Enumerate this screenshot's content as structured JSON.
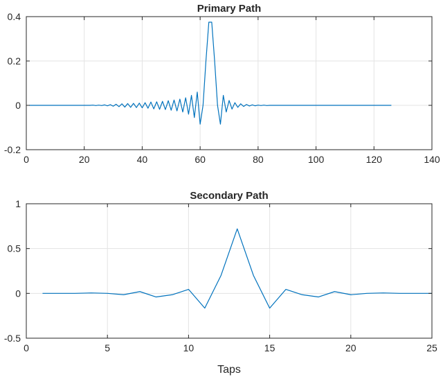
{
  "chart_data": [
    {
      "type": "line",
      "title": "Primary Path",
      "xlabel": "",
      "ylabel": "",
      "xlim": [
        0,
        140
      ],
      "ylim": [
        -0.2,
        0.4
      ],
      "xticks": [
        0,
        20,
        40,
        60,
        80,
        100,
        120,
        140
      ],
      "xtick_labels": [
        "0",
        "20",
        "40",
        "60",
        "80",
        "100",
        "120",
        "140"
      ],
      "yticks": [
        -0.2,
        0,
        0.2,
        0.4
      ],
      "ytick_labels": [
        "-0.2",
        "0",
        "0.2",
        "0.4"
      ],
      "grid": true,
      "line_color": "#0072BD",
      "x": [
        1,
        2,
        3,
        4,
        5,
        6,
        7,
        8,
        9,
        10,
        11,
        12,
        13,
        14,
        15,
        16,
        17,
        18,
        19,
        20,
        21,
        22,
        23,
        24,
        25,
        26,
        27,
        28,
        29,
        30,
        31,
        32,
        33,
        34,
        35,
        36,
        37,
        38,
        39,
        40,
        41,
        42,
        43,
        44,
        45,
        46,
        47,
        48,
        49,
        50,
        51,
        52,
        53,
        54,
        55,
        56,
        57,
        58,
        59,
        60,
        61,
        62,
        63,
        64,
        65,
        66,
        67,
        68,
        69,
        70,
        71,
        72,
        73,
        74,
        75,
        76,
        77,
        78,
        79,
        80,
        81,
        82,
        83,
        84,
        85,
        86,
        87,
        88,
        89,
        90,
        91,
        92,
        93,
        94,
        95,
        96,
        97,
        98,
        99,
        100,
        101,
        102,
        103,
        104,
        105,
        106,
        107,
        108,
        109,
        110,
        111,
        112,
        113,
        114,
        115,
        116,
        117,
        118,
        119,
        120,
        121,
        122,
        123,
        124,
        125,
        126
      ],
      "y": [
        0.0,
        0.0,
        0.0,
        0.0,
        0.0,
        0.0,
        0.0,
        0.0,
        0.0,
        0.0,
        0.0,
        0.0,
        0.0,
        0.0,
        0.0,
        0.0,
        0.0,
        0.0,
        0.0,
        0.0,
        0.0,
        0.0,
        0.001,
        -0.001,
        0.001,
        -0.001,
        0.002,
        -0.002,
        0.003,
        -0.004,
        0.005,
        -0.006,
        0.007,
        -0.008,
        0.008,
        -0.009,
        0.009,
        -0.01,
        0.01,
        -0.011,
        0.012,
        -0.013,
        0.015,
        -0.016,
        0.016,
        -0.018,
        0.018,
        -0.019,
        0.021,
        -0.022,
        0.024,
        -0.025,
        0.028,
        -0.03,
        0.034,
        -0.04,
        0.045,
        -0.055,
        0.06,
        -0.085,
        0.0,
        0.2,
        0.375,
        0.375,
        0.2,
        0.0,
        -0.085,
        0.045,
        -0.03,
        0.022,
        -0.017,
        0.012,
        -0.009,
        0.007,
        -0.005,
        0.004,
        -0.003,
        0.002,
        -0.002,
        0.001,
        -0.001,
        0.001,
        -0.001,
        0.0,
        0.0,
        0.0,
        0.0,
        0.0,
        0.0,
        0.0,
        0.0,
        0.0,
        0.0,
        0.0,
        0.0,
        0.0,
        0.0,
        0.0,
        0.0,
        0.0,
        0.0,
        0.0,
        0.0,
        0.0,
        0.0,
        0.0,
        0.0,
        0.0,
        0.0,
        0.0,
        0.0,
        0.0,
        0.0,
        0.0,
        0.0,
        0.0,
        0.0,
        0.0,
        0.0,
        0.0,
        0.0,
        0.0,
        0.0,
        0.0,
        0.0,
        0.0
      ]
    },
    {
      "type": "line",
      "title": "Secondary Path",
      "xlabel": "Taps",
      "ylabel": "",
      "xlim": [
        0,
        25
      ],
      "ylim": [
        -0.5,
        1
      ],
      "xticks": [
        0,
        5,
        10,
        15,
        20,
        25
      ],
      "xtick_labels": [
        "0",
        "5",
        "10",
        "15",
        "20",
        "25"
      ],
      "yticks": [
        -0.5,
        0,
        0.5,
        1
      ],
      "ytick_labels": [
        "-0.5",
        "0",
        "0.5",
        "1"
      ],
      "grid": true,
      "line_color": "#0072BD",
      "x": [
        1,
        2,
        3,
        4,
        5,
        6,
        7,
        8,
        9,
        10,
        11,
        12,
        13,
        14,
        15,
        16,
        17,
        18,
        19,
        20,
        21,
        22,
        23,
        24,
        25
      ],
      "y": [
        0.0,
        0.0,
        0.0,
        0.005,
        0.0,
        -0.015,
        0.02,
        -0.04,
        -0.015,
        0.045,
        -0.165,
        0.2,
        0.72,
        0.2,
        -0.165,
        0.045,
        -0.015,
        -0.04,
        0.02,
        -0.015,
        0.0,
        0.005,
        0.0,
        0.0,
        0.0
      ]
    }
  ]
}
